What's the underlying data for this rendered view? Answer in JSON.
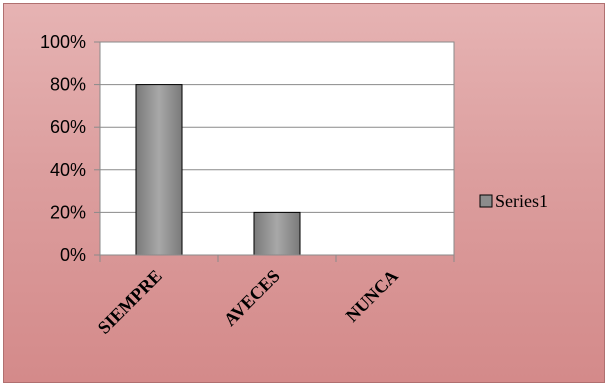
{
  "chart_data": {
    "type": "bar",
    "categories": [
      "SIEMPRE",
      "AVECES",
      "NUNCA"
    ],
    "series": [
      {
        "name": "Series1",
        "values": [
          80,
          20,
          0
        ]
      }
    ],
    "title": "",
    "xlabel": "",
    "ylabel": "",
    "ylim": [
      0,
      100
    ],
    "yticks": [
      "0%",
      "20%",
      "40%",
      "60%",
      "80%",
      "100%"
    ],
    "grid": true,
    "legend_position": "right",
    "colors": {
      "bar": "#8c8c8c",
      "bar_edge": "#000000",
      "plot_bg": "#ffffff",
      "chart_bg": "#dc9e9e"
    }
  }
}
